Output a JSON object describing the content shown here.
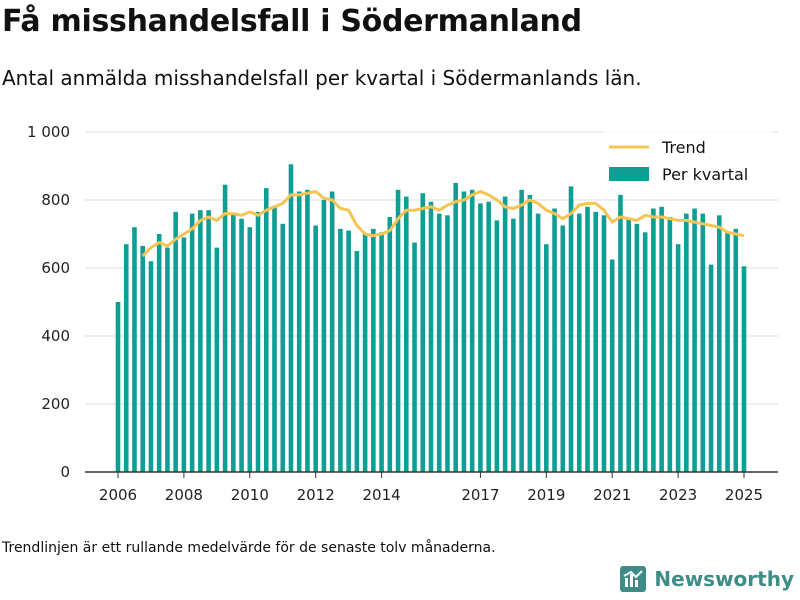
{
  "header": {
    "title": "Få misshandelsfall i Södermanland",
    "subtitle": "Antal anmälda misshandelsfall per kvartal i Södermanlands län."
  },
  "footnote": "Trendlinjen är ett rullande medelvärde för de senaste tolv månaderna.",
  "brand": {
    "name": "Newsworthy"
  },
  "colors": {
    "bar": "#0f9e94",
    "trend": "#f5c453",
    "grid": "#dddddd",
    "axis": "#333333",
    "brand": "#3f8c86"
  },
  "chart_data": {
    "type": "bar",
    "grid": true,
    "legend_position": "top-right",
    "ylim": [
      0,
      1000
    ],
    "y_ticks": [
      {
        "value": 0,
        "label": "0"
      },
      {
        "value": 200,
        "label": "200"
      },
      {
        "value": 400,
        "label": "400"
      },
      {
        "value": 600,
        "label": "600"
      },
      {
        "value": 800,
        "label": "800"
      },
      {
        "value": 1000,
        "label": "1 000"
      }
    ],
    "x_ticks": [
      {
        "value": 2006,
        "label": "2006"
      },
      {
        "value": 2008,
        "label": "2008"
      },
      {
        "value": 2010,
        "label": "2010"
      },
      {
        "value": 2012,
        "label": "2012"
      },
      {
        "value": 2014,
        "label": "2014"
      },
      {
        "value": 2017,
        "label": "2017"
      },
      {
        "value": 2019,
        "label": "2019"
      },
      {
        "value": 2021,
        "label": "2021"
      },
      {
        "value": 2023,
        "label": "2023"
      },
      {
        "value": 2025,
        "label": "2025"
      }
    ],
    "xlim": [
      2006,
      2025
    ],
    "series": [
      {
        "name": "Per kvartal",
        "type": "bar",
        "x": [
          2006.0,
          2006.25,
          2006.5,
          2006.75,
          2007.0,
          2007.25,
          2007.5,
          2007.75,
          2008.0,
          2008.25,
          2008.5,
          2008.75,
          2009.0,
          2009.25,
          2009.5,
          2009.75,
          2010.0,
          2010.25,
          2010.5,
          2010.75,
          2011.0,
          2011.25,
          2011.5,
          2011.75,
          2012.0,
          2012.25,
          2012.5,
          2012.75,
          2013.0,
          2013.25,
          2013.5,
          2013.75,
          2014.0,
          2014.25,
          2014.5,
          2014.75,
          2015.0,
          2015.25,
          2015.5,
          2015.75,
          2016.0,
          2016.25,
          2016.5,
          2016.75,
          2017.0,
          2017.25,
          2017.5,
          2017.75,
          2018.0,
          2018.25,
          2018.5,
          2018.75,
          2019.0,
          2019.25,
          2019.5,
          2019.75,
          2020.0,
          2020.25,
          2020.5,
          2020.75,
          2021.0,
          2021.25,
          2021.5,
          2021.75,
          2022.0,
          2022.25,
          2022.5,
          2022.75,
          2023.0,
          2023.25,
          2023.5,
          2023.75,
          2024.0,
          2024.25,
          2024.5,
          2024.75,
          2025.0
        ],
        "values": [
          500,
          670,
          720,
          665,
          620,
          700,
          660,
          765,
          690,
          760,
          770,
          770,
          660,
          845,
          760,
          745,
          720,
          765,
          835,
          780,
          730,
          905,
          825,
          830,
          725,
          800,
          825,
          715,
          710,
          650,
          700,
          715,
          705,
          750,
          830,
          810,
          675,
          820,
          795,
          760,
          755,
          850,
          825,
          830,
          790,
          795,
          740,
          810,
          745,
          830,
          815,
          760,
          670,
          775,
          725,
          840,
          760,
          780,
          765,
          755,
          625,
          815,
          745,
          730,
          705,
          775,
          780,
          750,
          670,
          760,
          775,
          760,
          610,
          755,
          705,
          715,
          605
        ]
      },
      {
        "name": "Trend",
        "type": "line",
        "x": [
          2006.75,
          2007.0,
          2007.25,
          2007.5,
          2007.75,
          2008.0,
          2008.25,
          2008.5,
          2008.75,
          2009.0,
          2009.25,
          2009.5,
          2009.75,
          2010.0,
          2010.25,
          2010.5,
          2010.75,
          2011.0,
          2011.25,
          2011.5,
          2011.75,
          2012.0,
          2012.25,
          2012.5,
          2012.75,
          2013.0,
          2013.25,
          2013.5,
          2013.75,
          2014.0,
          2014.25,
          2014.5,
          2014.75,
          2015.0,
          2015.25,
          2015.5,
          2015.75,
          2016.0,
          2016.25,
          2016.5,
          2016.75,
          2017.0,
          2017.25,
          2017.5,
          2017.75,
          2018.0,
          2018.25,
          2018.5,
          2018.75,
          2019.0,
          2019.25,
          2019.5,
          2019.75,
          2020.0,
          2020.25,
          2020.5,
          2020.75,
          2021.0,
          2021.25,
          2021.5,
          2021.75,
          2022.0,
          2022.25,
          2022.5,
          2022.75,
          2023.0,
          2023.25,
          2023.5,
          2023.75,
          2024.0,
          2024.25,
          2024.5,
          2024.75,
          2025.0
        ],
        "values": [
          635,
          660,
          675,
          665,
          685,
          700,
          715,
          740,
          750,
          740,
          760,
          760,
          755,
          765,
          755,
          770,
          780,
          790,
          815,
          815,
          820,
          825,
          805,
          800,
          775,
          770,
          725,
          700,
          695,
          700,
          710,
          745,
          770,
          770,
          775,
          780,
          770,
          785,
          795,
          800,
          815,
          825,
          815,
          800,
          780,
          775,
          785,
          800,
          790,
          770,
          760,
          745,
          760,
          785,
          790,
          790,
          770,
          735,
          750,
          745,
          740,
          755,
          750,
          750,
          745,
          740,
          740,
          735,
          730,
          725,
          720,
          705,
          700,
          695
        ]
      }
    ]
  }
}
